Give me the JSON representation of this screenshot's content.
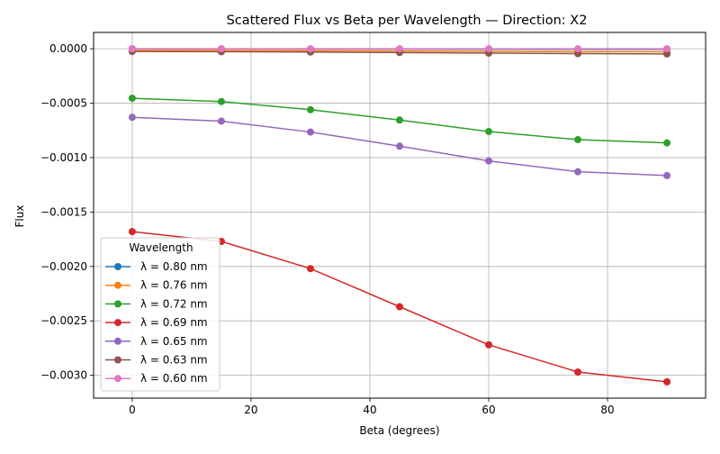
{
  "chart_data": {
    "type": "line",
    "title": "Scattered Flux vs Beta per Wavelength — Direction: X2",
    "xlabel": "Beta (degrees)",
    "ylabel": "Flux",
    "xlim": [
      -6.5,
      96.5
    ],
    "ylim": [
      -0.00321,
      0.00015
    ],
    "x_ticks": [
      0,
      20,
      40,
      60,
      80
    ],
    "x_tick_labels": [
      "0",
      "20",
      "40",
      "60",
      "80"
    ],
    "y_ticks": [
      0.0,
      -0.0005,
      -0.001,
      -0.0015,
      -0.002,
      -0.0025,
      -0.003
    ],
    "y_tick_labels": [
      "0.0000",
      "−0.0005",
      "−0.0010",
      "−0.0015",
      "−0.0020",
      "−0.0025",
      "−0.0030"
    ],
    "grid": true,
    "legend": {
      "title": "Wavelength",
      "placement": "lower-left"
    },
    "x": [
      0,
      15,
      30,
      45,
      60,
      75,
      90
    ],
    "series": [
      {
        "name": "λ = 0.80 nm",
        "color": "#1f77b4",
        "values": [
          0.0,
          -1e-06,
          -2e-06,
          -3e-06,
          -4e-06,
          -5e-06,
          -5e-06
        ]
      },
      {
        "name": "λ = 0.76 nm",
        "color": "#ff7f0e",
        "values": [
          -1.5e-05,
          -1.6e-05,
          -1.8e-05,
          -2.1e-05,
          -2.4e-05,
          -2.7e-05,
          -2.8e-05
        ]
      },
      {
        "name": "λ = 0.72 nm",
        "color": "#2ca02c",
        "values": [
          -0.000455,
          -0.000485,
          -0.00056,
          -0.000655,
          -0.00076,
          -0.000835,
          -0.000865
        ]
      },
      {
        "name": "λ = 0.69 nm",
        "color": "#d62728",
        "values": [
          -0.00168,
          -0.00177,
          -0.00202,
          -0.00237,
          -0.00272,
          -0.00297,
          -0.00306
        ]
      },
      {
        "name": "λ = 0.65 nm",
        "color": "#9467bd",
        "values": [
          -0.00063,
          -0.000665,
          -0.000765,
          -0.000895,
          -0.00103,
          -0.00113,
          -0.001165
        ]
      },
      {
        "name": "λ = 0.63 nm",
        "color": "#8c564b",
        "values": [
          -2.5e-05,
          -2.7e-05,
          -3e-05,
          -3.5e-05,
          -4e-05,
          -4.5e-05,
          -4.8e-05
        ]
      },
      {
        "name": "λ = 0.60 nm",
        "color": "#e377c2",
        "values": [
          0.0,
          0.0,
          0.0,
          0.0,
          0.0,
          0.0,
          0.0
        ]
      }
    ]
  }
}
